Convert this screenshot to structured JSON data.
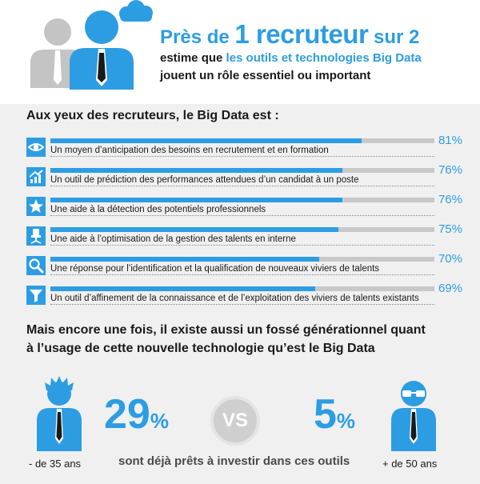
{
  "header": {
    "headline_prefix": "Près de ",
    "headline_big": "1 recruteur",
    "headline_suffix": " sur 2",
    "sub1_pre": "estime que ",
    "sub1_highlight": "les outils et technologies Big Data",
    "sub2": "jouent un rôle essentiel ou important"
  },
  "chart_data": {
    "type": "bar",
    "title": "Aux yeux des recruteurs, le Big Data est :",
    "categories": [
      "Un moyen d’anticipation des besoins en recrutement et en formation",
      "Un outil de prédiction des performances attendues d’un candidat à un poste",
      "Une aide à la détection des potentiels professionnels",
      "Une aide à l’optimisation de la gestion des talents en interne",
      "Une réponse pour l’identification et la qualification de nouveaux viviers de talents",
      "Un outil d’affinement de la connaissance et de l’exploitation des viviers de talents existants"
    ],
    "values": [
      81,
      76,
      76,
      75,
      70,
      69
    ],
    "value_labels": [
      "81%",
      "76%",
      "76%",
      "75%",
      "70%",
      "69%"
    ],
    "icons": [
      "eye-icon",
      "chart-growth-icon",
      "star-icon",
      "chair-icon",
      "magnifier-icon",
      "funnel-icon"
    ],
    "xlim": [
      0,
      100
    ],
    "colors": {
      "fill": "#2d9de3",
      "track": "#c8c8c8"
    }
  },
  "generation": {
    "title_line1": "Mais encore une fois, il existe aussi un fossé générationnel quant",
    "title_line2": "à l’usage de cette nouvelle technologie qu’est le Big Data",
    "young": {
      "label": "- de 35 ans",
      "pct_num": "29",
      "pct_sign": "%"
    },
    "vs": "VS",
    "old": {
      "label": "+ de 50 ans",
      "pct_num": "5",
      "pct_sign": "%"
    },
    "caption": "sont déjà prêts à investir dans ces outils"
  },
  "colors": {
    "accent": "#2d9de3",
    "panel_bg": "#f0f0f0",
    "person_gray": "#c4c4c4"
  }
}
